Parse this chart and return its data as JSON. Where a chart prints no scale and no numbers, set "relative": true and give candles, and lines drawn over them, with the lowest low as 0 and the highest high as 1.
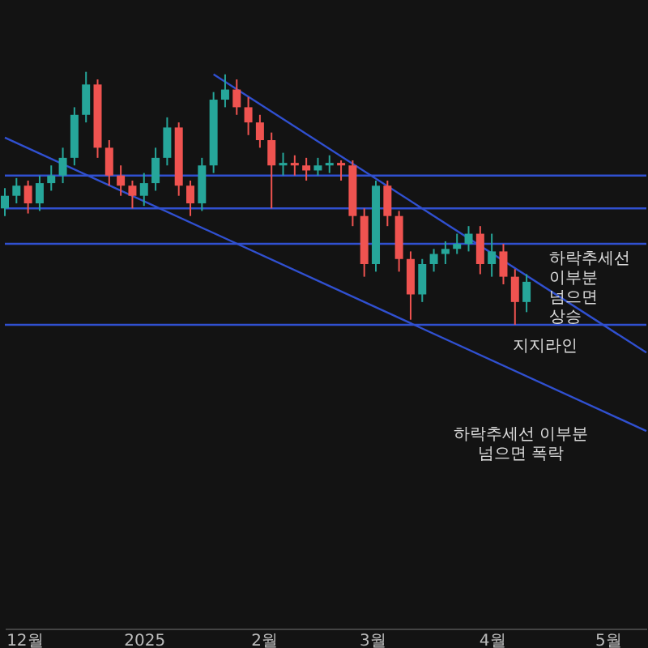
{
  "chart_data": {
    "type": "candlestick",
    "relative": true,
    "x": [
      "2024-11-26",
      "2024-11-29",
      "2024-12-02",
      "2024-12-05",
      "2024-12-08",
      "2024-12-11",
      "2024-12-14",
      "2024-12-17",
      "2024-12-20",
      "2024-12-23",
      "2024-12-26",
      "2024-12-29",
      "2025-01-01",
      "2025-01-04",
      "2025-01-07",
      "2025-01-10",
      "2025-01-13",
      "2025-01-16",
      "2025-01-19",
      "2025-01-22",
      "2025-01-25",
      "2025-01-28",
      "2025-01-31",
      "2025-02-03",
      "2025-02-06",
      "2025-02-09",
      "2025-02-12",
      "2025-02-15",
      "2025-02-18",
      "2025-02-21",
      "2025-02-24",
      "2025-02-27",
      "2025-03-02",
      "2025-03-05",
      "2025-03-08",
      "2025-03-11",
      "2025-03-14",
      "2025-03-17",
      "2025-03-20",
      "2025-03-23",
      "2025-03-26",
      "2025-03-29",
      "2025-04-01",
      "2025-04-04",
      "2025-04-07",
      "2025-04-10"
    ],
    "ohlc": [
      [
        0.46,
        0.54,
        0.43,
        0.51
      ],
      [
        0.51,
        0.58,
        0.48,
        0.55
      ],
      [
        0.55,
        0.57,
        0.44,
        0.48
      ],
      [
        0.48,
        0.59,
        0.45,
        0.56
      ],
      [
        0.56,
        0.63,
        0.53,
        0.59
      ],
      [
        0.59,
        0.7,
        0.56,
        0.66
      ],
      [
        0.66,
        0.86,
        0.63,
        0.83
      ],
      [
        0.83,
        1.0,
        0.8,
        0.95
      ],
      [
        0.95,
        0.97,
        0.66,
        0.7
      ],
      [
        0.7,
        0.73,
        0.55,
        0.59
      ],
      [
        0.59,
        0.63,
        0.51,
        0.55
      ],
      [
        0.55,
        0.57,
        0.46,
        0.51
      ],
      [
        0.51,
        0.6,
        0.47,
        0.56
      ],
      [
        0.56,
        0.7,
        0.53,
        0.66
      ],
      [
        0.66,
        0.82,
        0.63,
        0.78
      ],
      [
        0.78,
        0.8,
        0.51,
        0.55
      ],
      [
        0.55,
        0.57,
        0.43,
        0.48
      ],
      [
        0.48,
        0.66,
        0.45,
        0.63
      ],
      [
        0.63,
        0.92,
        0.6,
        0.89
      ],
      [
        0.89,
        0.99,
        0.86,
        0.93
      ],
      [
        0.93,
        0.97,
        0.83,
        0.86
      ],
      [
        0.86,
        0.9,
        0.75,
        0.8
      ],
      [
        0.8,
        0.83,
        0.7,
        0.73
      ],
      [
        0.73,
        0.76,
        0.46,
        0.63
      ],
      [
        0.63,
        0.68,
        0.59,
        0.64
      ],
      [
        0.64,
        0.67,
        0.59,
        0.63
      ],
      [
        0.63,
        0.66,
        0.57,
        0.61
      ],
      [
        0.61,
        0.66,
        0.59,
        0.63
      ],
      [
        0.63,
        0.67,
        0.6,
        0.64
      ],
      [
        0.64,
        0.65,
        0.57,
        0.63
      ],
      [
        0.63,
        0.65,
        0.39,
        0.43
      ],
      [
        0.43,
        0.46,
        0.19,
        0.24
      ],
      [
        0.24,
        0.57,
        0.21,
        0.55
      ],
      [
        0.55,
        0.57,
        0.39,
        0.43
      ],
      [
        0.43,
        0.45,
        0.21,
        0.26
      ],
      [
        0.26,
        0.29,
        0.02,
        0.12
      ],
      [
        0.12,
        0.26,
        0.09,
        0.24
      ],
      [
        0.24,
        0.3,
        0.21,
        0.28
      ],
      [
        0.28,
        0.33,
        0.24,
        0.3
      ],
      [
        0.3,
        0.36,
        0.28,
        0.32
      ],
      [
        0.32,
        0.39,
        0.29,
        0.36
      ],
      [
        0.36,
        0.39,
        0.2,
        0.24
      ],
      [
        0.24,
        0.36,
        0.19,
        0.29
      ],
      [
        0.29,
        0.32,
        0.16,
        0.19
      ],
      [
        0.19,
        0.22,
        0.0,
        0.09
      ],
      [
        0.09,
        0.2,
        0.05,
        0.17
      ]
    ],
    "colors": [
      "#26a69a",
      "#26a69a",
      "#ef5350",
      "#26a69a",
      "#26a69a",
      "#26a69a",
      "#26a69a",
      "#26a69a",
      "#ef5350",
      "#ef5350",
      "#ef5350",
      "#ef5350",
      "#26a69a",
      "#26a69a",
      "#26a69a",
      "#ef5350",
      "#ef5350",
      "#26a69a",
      "#26a69a",
      "#26a69a",
      "#ef5350",
      "#ef5350",
      "#ef5350",
      "#ef5350",
      "#26a69a",
      "#ef5350",
      "#ef5350",
      "#26a69a",
      "#26a69a",
      "#ef5350",
      "#ef5350",
      "#ef5350",
      "#26a69a",
      "#ef5350",
      "#ef5350",
      "#ef5350",
      "#26a69a",
      "#26a69a",
      "#26a69a",
      "#26a69a",
      "#26a69a",
      "#ef5350",
      "#26a69a",
      "#ef5350",
      "#ef5350",
      "#26a69a"
    ],
    "series": [
      {
        "type": "line",
        "color": "#3050d0",
        "x": [
          "2024-11-26",
          "2025-05-11"
        ],
        "values": [
          0.74,
          -0.42
        ]
      },
      {
        "type": "line",
        "color": "#3050d0",
        "x": [
          "2025-01-19",
          "2025-05-11"
        ],
        "values": [
          0.99,
          -0.11
        ]
      }
    ],
    "ref_lines": [
      {
        "axis": "y",
        "value": 0.59,
        "color": "#3050d0"
      },
      {
        "axis": "y",
        "value": 0.46,
        "color": "#3050d0"
      },
      {
        "axis": "y",
        "value": 0.32,
        "color": "#3050d0"
      },
      {
        "axis": "y",
        "value": 0,
        "color": "#3050d0"
      }
    ],
    "annotations": [
      {
        "text": "하락추세선 이부분 넘으면 상승",
        "x": "2025-04-15",
        "y": 0.18
      },
      {
        "text": "지지라인",
        "x": "2025-04-08",
        "y": 0.0
      },
      {
        "text": "하락추세선 이부분 넘으면 폭락",
        "x": "2025-04-11",
        "y": -0.22
      }
    ],
    "xlim": [
      "2024-11-26",
      "2025-05-11"
    ],
    "xticks": [
      {
        "value": "2024-12-01",
        "label": "12월"
      },
      {
        "value": "2025-01-01",
        "label": "2025"
      },
      {
        "value": "2025-02-01",
        "label": "2월"
      },
      {
        "value": "2025-03-01",
        "label": "3월"
      },
      {
        "value": "2025-04-01",
        "label": "4월"
      },
      {
        "value": "2025-05-01",
        "label": "5월"
      }
    ],
    "grid": false,
    "line_style": "solid"
  }
}
